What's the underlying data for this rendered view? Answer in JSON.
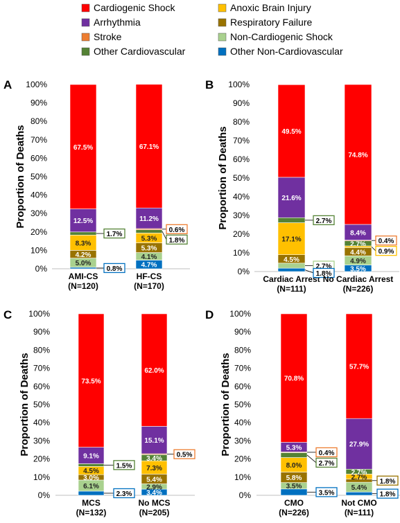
{
  "legend": {
    "items": [
      {
        "label": "Cardiogenic Shock",
        "color": "#ff0000"
      },
      {
        "label": "Anoxic Brain Injury",
        "color": "#ffc000"
      },
      {
        "label": "Arrhythmia",
        "color": "#7030a0"
      },
      {
        "label": "Respiratory Failure",
        "color": "#997300"
      },
      {
        "label": "Stroke",
        "color": "#ed7d31"
      },
      {
        "label": "Non-Cardiogenic Shock",
        "color": "#a9d18e"
      },
      {
        "label": "Other Cardiovascular",
        "color": "#548235"
      },
      {
        "label": "Other Non-Cardiovascular",
        "color": "#0070c0"
      }
    ]
  },
  "chart_data": [
    {
      "type": "bar",
      "stacked": true,
      "panel_label": "A",
      "ylabel": "Proportion of Deaths",
      "ylim": [
        0,
        100
      ],
      "yticks": [
        "0%",
        "10%",
        "20%",
        "30%",
        "40%",
        "50%",
        "60%",
        "70%",
        "80%",
        "90%",
        "100%"
      ],
      "categories": [
        {
          "name": "AMI-CS",
          "n": "(N=120)"
        },
        {
          "name": "HF-CS",
          "n": "(N=170)"
        }
      ],
      "series": [
        {
          "name": "Other Non-Cardiovascular",
          "values": [
            0.8,
            4.7
          ]
        },
        {
          "name": "Non-Cardiogenic Shock",
          "values": [
            5.0,
            4.1
          ]
        },
        {
          "name": "Respiratory Failure",
          "values": [
            4.2,
            5.3
          ]
        },
        {
          "name": "Anoxic Brain Injury",
          "values": [
            8.3,
            5.3
          ]
        },
        {
          "name": "Other Cardiovascular",
          "values": [
            1.7,
            1.8
          ]
        },
        {
          "name": "Stroke",
          "values": [
            0.0,
            0.6
          ]
        },
        {
          "name": "Arrhythmia",
          "values": [
            12.5,
            11.2
          ]
        },
        {
          "name": "Cardiogenic Shock",
          "values": [
            67.5,
            67.1
          ]
        }
      ],
      "labels": [
        {
          "bar": 0,
          "series": "Other Non-Cardiovascular",
          "text": "0.8%",
          "callout": true
        },
        {
          "bar": 0,
          "series": "Non-Cardiogenic Shock",
          "text": "5.0%"
        },
        {
          "bar": 0,
          "series": "Respiratory Failure",
          "text": "4.2%"
        },
        {
          "bar": 0,
          "series": "Anoxic Brain Injury",
          "text": "8.3%"
        },
        {
          "bar": 0,
          "series": "Other Cardiovascular",
          "text": "1.7%",
          "callout": true
        },
        {
          "bar": 0,
          "series": "Arrhythmia",
          "text": "12.5%"
        },
        {
          "bar": 0,
          "series": "Cardiogenic Shock",
          "text": "67.5%"
        },
        {
          "bar": 1,
          "series": "Other Non-Cardiovascular",
          "text": "4.7%"
        },
        {
          "bar": 1,
          "series": "Non-Cardiogenic Shock",
          "text": "4.1%"
        },
        {
          "bar": 1,
          "series": "Respiratory Failure",
          "text": "5.3%"
        },
        {
          "bar": 1,
          "series": "Anoxic Brain Injury",
          "text": "5.3%"
        },
        {
          "bar": 1,
          "series": "Other Cardiovascular",
          "text": "1.8%",
          "callout": true
        },
        {
          "bar": 1,
          "series": "Stroke",
          "text": "0.6%",
          "callout": true
        },
        {
          "bar": 1,
          "series": "Arrhythmia",
          "text": "11.2%"
        },
        {
          "bar": 1,
          "series": "Cardiogenic Shock",
          "text": "67.1%"
        }
      ]
    },
    {
      "type": "bar",
      "stacked": true,
      "panel_label": "B",
      "ylabel": "Proportion of Deaths",
      "ylim": [
        0,
        100
      ],
      "yticks": [
        "0%",
        "10%",
        "20%",
        "30%",
        "40%",
        "50%",
        "60%",
        "70%",
        "80%",
        "90%",
        "100%"
      ],
      "categories": [
        {
          "name": "Cardiac Arrest",
          "n": "(N=111)"
        },
        {
          "name": "No Cardiac Arrest",
          "n": "(N=226)"
        }
      ],
      "series": [
        {
          "name": "Other Non-Cardiovascular",
          "values": [
            1.8,
            3.5
          ]
        },
        {
          "name": "Non-Cardiogenic Shock",
          "values": [
            2.7,
            4.9
          ]
        },
        {
          "name": "Respiratory Failure",
          "values": [
            4.5,
            4.4
          ]
        },
        {
          "name": "Anoxic Brain Injury",
          "values": [
            17.1,
            0.9
          ]
        },
        {
          "name": "Other Cardiovascular",
          "values": [
            2.7,
            2.7
          ]
        },
        {
          "name": "Stroke",
          "values": [
            0.0,
            0.4
          ]
        },
        {
          "name": "Arrhythmia",
          "values": [
            21.6,
            8.4
          ]
        },
        {
          "name": "Cardiogenic Shock",
          "values": [
            49.5,
            74.8
          ]
        }
      ],
      "labels": [
        {
          "bar": 0,
          "series": "Other Non-Cardiovascular",
          "text": "1.8%",
          "callout": true
        },
        {
          "bar": 0,
          "series": "Non-Cardiogenic Shock",
          "text": "2.7%",
          "callout": true
        },
        {
          "bar": 0,
          "series": "Respiratory Failure",
          "text": "4.5%"
        },
        {
          "bar": 0,
          "series": "Anoxic Brain Injury",
          "text": "17.1%"
        },
        {
          "bar": 0,
          "series": "Other Cardiovascular",
          "text": "2.7%",
          "callout": true
        },
        {
          "bar": 0,
          "series": "Arrhythmia",
          "text": "21.6%"
        },
        {
          "bar": 0,
          "series": "Cardiogenic Shock",
          "text": "49.5%"
        },
        {
          "bar": 1,
          "series": "Other Non-Cardiovascular",
          "text": "3.5%"
        },
        {
          "bar": 1,
          "series": "Non-Cardiogenic Shock",
          "text": "4.9%"
        },
        {
          "bar": 1,
          "series": "Respiratory Failure",
          "text": "4.4%"
        },
        {
          "bar": 1,
          "series": "Anoxic Brain Injury",
          "text": "0.9%",
          "callout": true
        },
        {
          "bar": 1,
          "series": "Other Cardiovascular",
          "text": "2.7%"
        },
        {
          "bar": 1,
          "series": "Stroke",
          "text": "0.4%",
          "callout": true
        },
        {
          "bar": 1,
          "series": "Arrhythmia",
          "text": "8.4%"
        },
        {
          "bar": 1,
          "series": "Cardiogenic Shock",
          "text": "74.8%"
        }
      ]
    },
    {
      "type": "bar",
      "stacked": true,
      "panel_label": "C",
      "ylabel": "Proportion of Deaths",
      "ylim": [
        0,
        100
      ],
      "yticks": [
        "0%",
        "10%",
        "20%",
        "30%",
        "40%",
        "50%",
        "60%",
        "70%",
        "80%",
        "90%",
        "100%"
      ],
      "categories": [
        {
          "name": "MCS",
          "n": "(N=132)"
        },
        {
          "name": "No MCS",
          "n": "(N=205)"
        }
      ],
      "series": [
        {
          "name": "Other Non-Cardiovascular",
          "values": [
            2.3,
            3.4
          ]
        },
        {
          "name": "Non-Cardiogenic Shock",
          "values": [
            6.1,
            2.9
          ]
        },
        {
          "name": "Respiratory Failure",
          "values": [
            3.0,
            5.4
          ]
        },
        {
          "name": "Anoxic Brain Injury",
          "values": [
            4.5,
            7.3
          ]
        },
        {
          "name": "Other Cardiovascular",
          "values": [
            1.5,
            3.4
          ]
        },
        {
          "name": "Stroke",
          "values": [
            0.0,
            0.5
          ]
        },
        {
          "name": "Arrhythmia",
          "values": [
            9.1,
            15.1
          ]
        },
        {
          "name": "Cardiogenic Shock",
          "values": [
            73.5,
            62.0
          ]
        }
      ],
      "labels": [
        {
          "bar": 0,
          "series": "Other Non-Cardiovascular",
          "text": "2.3%",
          "callout": true
        },
        {
          "bar": 0,
          "series": "Non-Cardiogenic Shock",
          "text": "6.1%"
        },
        {
          "bar": 0,
          "series": "Respiratory Failure",
          "text": "3.0%"
        },
        {
          "bar": 0,
          "series": "Anoxic Brain Injury",
          "text": "4.5%"
        },
        {
          "bar": 0,
          "series": "Other Cardiovascular",
          "text": "1.5%",
          "callout": true
        },
        {
          "bar": 0,
          "series": "Arrhythmia",
          "text": "9.1%"
        },
        {
          "bar": 0,
          "series": "Cardiogenic Shock",
          "text": "73.5%"
        },
        {
          "bar": 1,
          "series": "Other Non-Cardiovascular",
          "text": "3.4%"
        },
        {
          "bar": 1,
          "series": "Non-Cardiogenic Shock",
          "text": "2.9%"
        },
        {
          "bar": 1,
          "series": "Respiratory Failure",
          "text": "5.4%"
        },
        {
          "bar": 1,
          "series": "Anoxic Brain Injury",
          "text": "7.3%"
        },
        {
          "bar": 1,
          "series": "Other Cardiovascular",
          "text": "3.4%"
        },
        {
          "bar": 1,
          "series": "Stroke",
          "text": "0.5%",
          "callout": true
        },
        {
          "bar": 1,
          "series": "Arrhythmia",
          "text": "15.1%"
        },
        {
          "bar": 1,
          "series": "Cardiogenic Shock",
          "text": "62.0%"
        }
      ]
    },
    {
      "type": "bar",
      "stacked": true,
      "panel_label": "D",
      "ylabel": "Proportion of Deaths",
      "ylim": [
        0,
        100
      ],
      "yticks": [
        "0%",
        "10%",
        "20%",
        "30%",
        "40%",
        "50%",
        "60%",
        "70%",
        "80%",
        "90%",
        "100%"
      ],
      "categories": [
        {
          "name": "CMO",
          "n": "(N=226)"
        },
        {
          "name": "Not CMO",
          "n": "(N=111)"
        }
      ],
      "series": [
        {
          "name": "Other Non-Cardiovascular",
          "values": [
            3.5,
            1.8
          ]
        },
        {
          "name": "Non-Cardiogenic Shock",
          "values": [
            3.5,
            5.4
          ]
        },
        {
          "name": "Respiratory Failure",
          "values": [
            5.8,
            1.8
          ]
        },
        {
          "name": "Anoxic Brain Injury",
          "values": [
            8.0,
            2.7
          ]
        },
        {
          "name": "Other Cardiovascular",
          "values": [
            2.7,
            2.7
          ]
        },
        {
          "name": "Stroke",
          "values": [
            0.4,
            0.0
          ]
        },
        {
          "name": "Arrhythmia",
          "values": [
            5.3,
            27.9
          ]
        },
        {
          "name": "Cardiogenic Shock",
          "values": [
            70.8,
            57.7
          ]
        }
      ],
      "labels": [
        {
          "bar": 0,
          "series": "Other Non-Cardiovascular",
          "text": "3.5%",
          "callout": true
        },
        {
          "bar": 0,
          "series": "Non-Cardiogenic Shock",
          "text": "3.5%"
        },
        {
          "bar": 0,
          "series": "Respiratory Failure",
          "text": "5.8%"
        },
        {
          "bar": 0,
          "series": "Anoxic Brain Injury",
          "text": "8.0%"
        },
        {
          "bar": 0,
          "series": "Other Cardiovascular",
          "text": "2.7%",
          "callout": true
        },
        {
          "bar": 0,
          "series": "Stroke",
          "text": "0.4%",
          "callout": true
        },
        {
          "bar": 0,
          "series": "Arrhythmia",
          "text": "5.3%"
        },
        {
          "bar": 0,
          "series": "Cardiogenic Shock",
          "text": "70.8%"
        },
        {
          "bar": 1,
          "series": "Other Non-Cardiovascular",
          "text": "1.8%",
          "callout": true
        },
        {
          "bar": 1,
          "series": "Non-Cardiogenic Shock",
          "text": "5.4%"
        },
        {
          "bar": 1,
          "series": "Respiratory Failure",
          "text": "1.8%",
          "callout": true
        },
        {
          "bar": 1,
          "series": "Anoxic Brain Injury",
          "text": "2.7%"
        },
        {
          "bar": 1,
          "series": "Other Cardiovascular",
          "text": "2.7%"
        },
        {
          "bar": 1,
          "series": "Arrhythmia",
          "text": "27.9%"
        },
        {
          "bar": 1,
          "series": "Cardiogenic Shock",
          "text": "57.7%"
        }
      ]
    }
  ]
}
